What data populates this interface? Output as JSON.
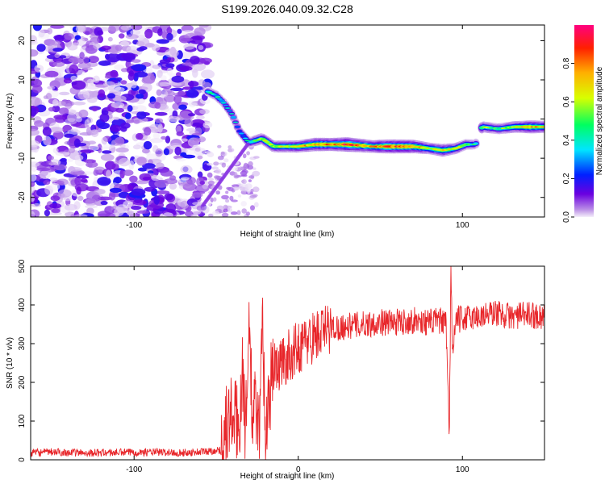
{
  "figure_title": "S199.2026.040.09.32.C28",
  "chart_data": [
    {
      "type": "heatmap",
      "title": "S199.2026.040.09.32.C28",
      "xlabel": "Height of straight line (km)",
      "ylabel": "Frequency (Hz)",
      "xlim": [
        -163,
        150
      ],
      "ylim": [
        -25,
        24
      ],
      "xticks": [
        -100,
        0,
        100
      ],
      "yticks": [
        -20,
        -10,
        0,
        10,
        20
      ],
      "colorbar": {
        "label": "Normalized spectral amplitude",
        "range": [
          0,
          1
        ],
        "ticks": [
          0.0,
          0.2,
          0.4,
          0.6,
          0.8
        ],
        "colors": [
          "#f4eefa",
          "#b98ce6",
          "#6a00e0",
          "#0020ff",
          "#00e5ff",
          "#00ff60",
          "#d8ff00",
          "#ffb000",
          "#ff2000",
          "#ff0080"
        ]
      },
      "noise_region_km": [
        -163,
        -55
      ],
      "ridge": [
        {
          "x": -55,
          "y": 7,
          "amp": 0.35
        },
        {
          "x": -50,
          "y": 6,
          "amp": 0.4
        },
        {
          "x": -45,
          "y": 4,
          "amp": 0.3
        },
        {
          "x": -40,
          "y": 1,
          "amp": 0.35
        },
        {
          "x": -36,
          "y": -3,
          "amp": 0.3
        },
        {
          "x": -30,
          "y": -6,
          "amp": 0.45
        },
        {
          "x": -22,
          "y": -5,
          "amp": 0.55
        },
        {
          "x": -15,
          "y": -7,
          "amp": 0.6
        },
        {
          "x": 0,
          "y": -7,
          "amp": 0.65
        },
        {
          "x": 10,
          "y": -6.5,
          "amp": 0.8
        },
        {
          "x": 20,
          "y": -6.5,
          "amp": 0.75
        },
        {
          "x": 30,
          "y": -6.5,
          "amp": 0.9
        },
        {
          "x": 45,
          "y": -7,
          "amp": 0.7
        },
        {
          "x": 55,
          "y": -7,
          "amp": 0.85
        },
        {
          "x": 70,
          "y": -7,
          "amp": 0.8
        },
        {
          "x": 80,
          "y": -7.5,
          "amp": 0.6
        },
        {
          "x": 88,
          "y": -8,
          "amp": 0.7
        },
        {
          "x": 96,
          "y": -7.5,
          "amp": 0.55
        },
        {
          "x": 102,
          "y": -6.5,
          "amp": 0.5
        },
        {
          "x": 108,
          "y": -6.5,
          "amp": 0.4
        },
        {
          "x": 112,
          "y": -2,
          "amp": 0.55
        },
        {
          "x": 122,
          "y": -2.5,
          "amp": 0.5
        },
        {
          "x": 132,
          "y": -2,
          "amp": 0.6
        },
        {
          "x": 142,
          "y": -2,
          "amp": 0.75
        },
        {
          "x": 150,
          "y": -2,
          "amp": 0.65
        }
      ]
    },
    {
      "type": "line",
      "xlabel": "Height of straight line (km)",
      "ylabel": "SNR (10 * v/v)",
      "xlim": [
        -163,
        150
      ],
      "ylim": [
        0,
        500
      ],
      "xticks": [
        -100,
        0,
        100
      ],
      "yticks": [
        0,
        100,
        200,
        300,
        400,
        500
      ],
      "series": [
        {
          "name": "SNR",
          "color": "#e8262a",
          "x": [
            -163,
            -150,
            -130,
            -110,
            -90,
            -70,
            -55,
            -47,
            -44,
            -40,
            -36,
            -34,
            -32,
            -30,
            -28,
            -26,
            -24,
            -22,
            -20,
            -16,
            -10,
            0,
            10,
            20,
            30,
            40,
            50,
            60,
            70,
            80,
            86,
            90,
            92,
            93,
            94,
            96,
            100,
            110,
            120,
            130,
            140,
            150
          ],
          "values": [
            18,
            20,
            18,
            19,
            20,
            18,
            22,
            25,
            90,
            120,
            80,
            250,
            60,
            380,
            90,
            150,
            60,
            390,
            50,
            230,
            250,
            290,
            320,
            340,
            345,
            350,
            355,
            355,
            360,
            355,
            360,
            350,
            60,
            495,
            280,
            360,
            365,
            370,
            380,
            370,
            375,
            370
          ]
        }
      ]
    }
  ]
}
